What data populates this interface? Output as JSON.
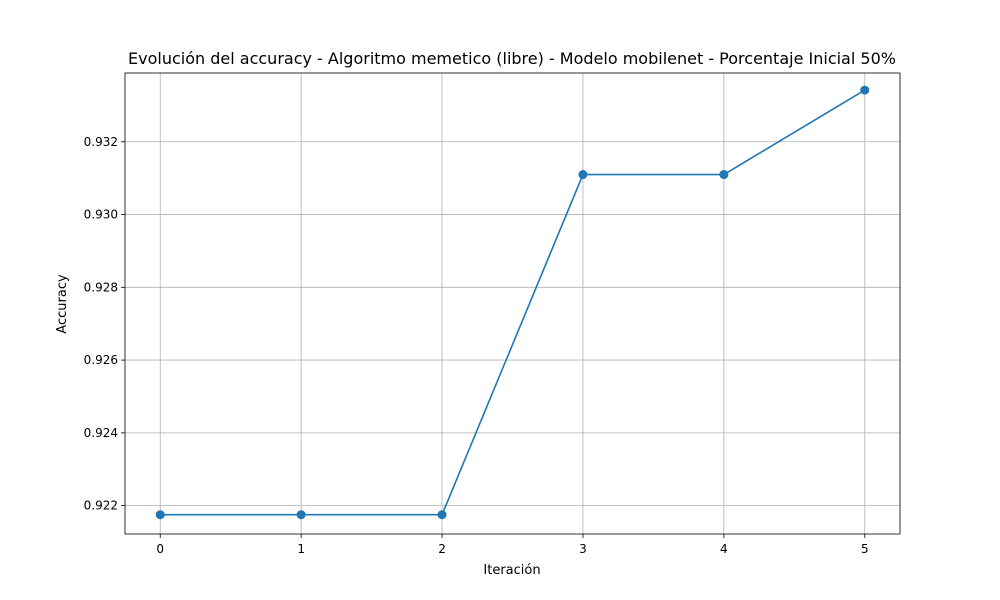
{
  "chart_data": {
    "type": "line",
    "title": "Evolución del accuracy - Algoritmo memetico (libre) - Modelo mobilenet - Porcentaje Inicial 50%",
    "xlabel": "Iteración",
    "ylabel": "Accuracy",
    "x": [
      0,
      1,
      2,
      3,
      4,
      5
    ],
    "series": [
      {
        "values": [
          0.92175,
          0.92175,
          0.92175,
          0.9311,
          0.9311,
          0.93342
        ]
      }
    ],
    "xlim": [
      -0.25,
      5.25
    ],
    "ylim": [
      0.92122,
      0.93389
    ],
    "xticks": [
      0,
      1,
      2,
      3,
      4,
      5
    ],
    "xtick_labels": [
      "0",
      "1",
      "2",
      "3",
      "4",
      "5"
    ],
    "yticks": [
      0.922,
      0.924,
      0.926,
      0.928,
      0.93,
      0.932
    ],
    "ytick_labels": [
      "0.922",
      "0.924",
      "0.926",
      "0.928",
      "0.930",
      "0.932"
    ],
    "grid": true,
    "marker": "circle",
    "colors": {
      "line": "#1f77b4",
      "grid": "#b0b0b0"
    }
  }
}
